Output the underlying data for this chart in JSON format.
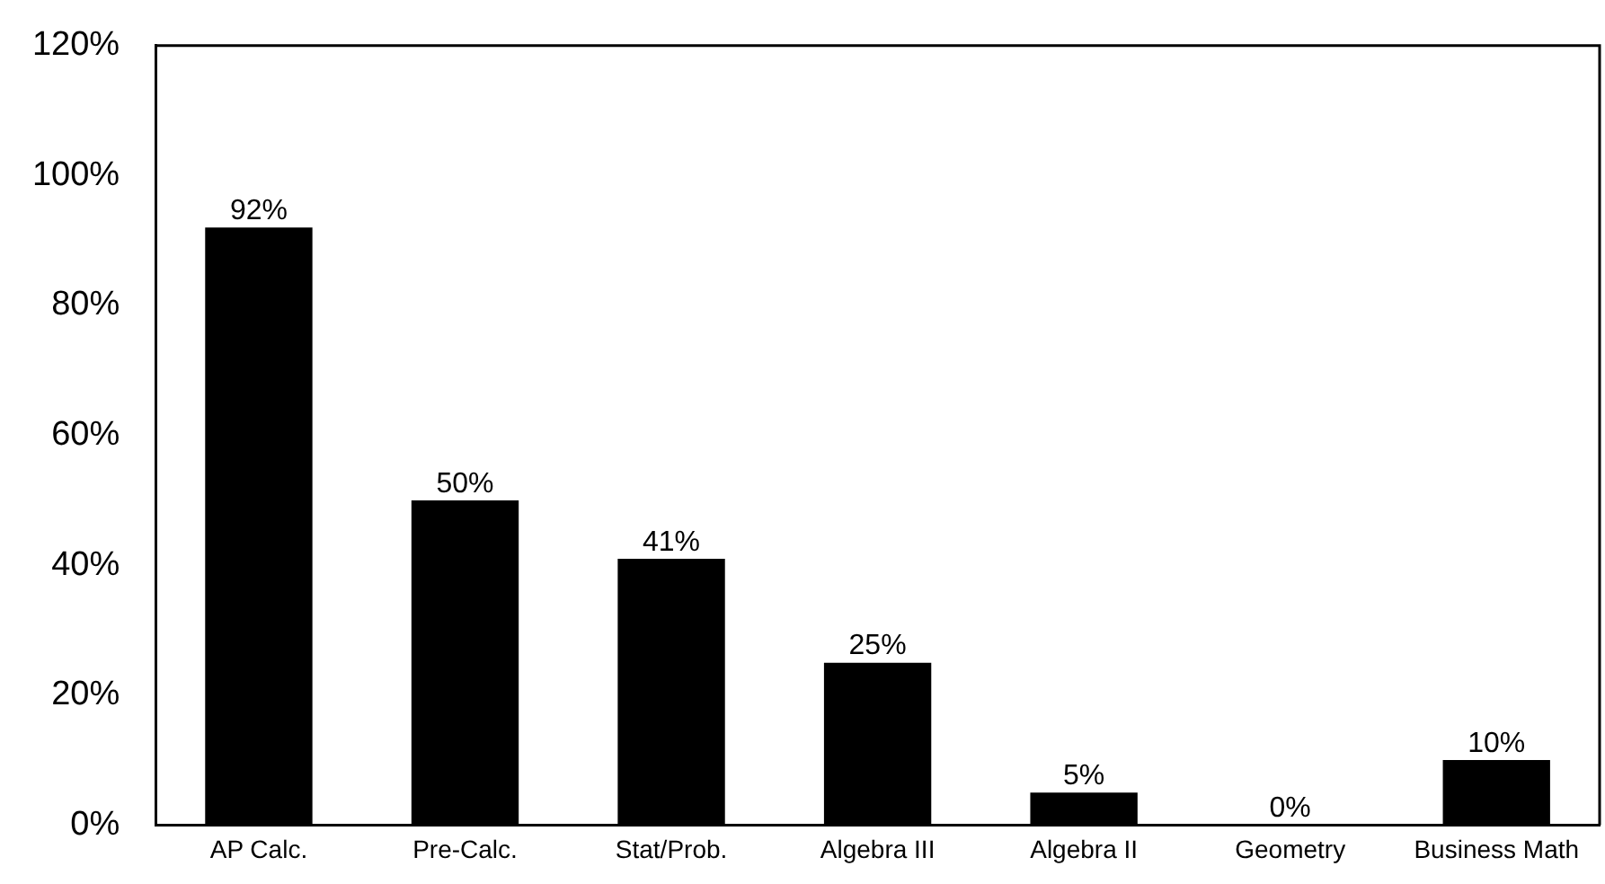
{
  "chart_data": {
    "type": "bar",
    "categories": [
      "AP Calc.",
      "Pre-Calc.",
      "Stat/Prob.",
      "Algebra III",
      "Algebra II",
      "Geometry",
      "Business Math"
    ],
    "values": [
      92,
      50,
      41,
      25,
      5,
      0,
      10
    ],
    "value_labels": [
      "92%",
      "50%",
      "41%",
      "25%",
      "5%",
      "0%",
      "10%"
    ],
    "color": "#000000",
    "ylim": [
      0,
      120
    ],
    "yticks": [
      {
        "value": 0,
        "label": "0%"
      },
      {
        "value": 20,
        "label": "20%"
      },
      {
        "value": 40,
        "label": "40%"
      },
      {
        "value": 60,
        "label": "60%"
      },
      {
        "value": 80,
        "label": "80%"
      },
      {
        "value": 100,
        "label": "100%"
      },
      {
        "value": 120,
        "label": "120%"
      }
    ],
    "grid": false,
    "legend": false
  }
}
